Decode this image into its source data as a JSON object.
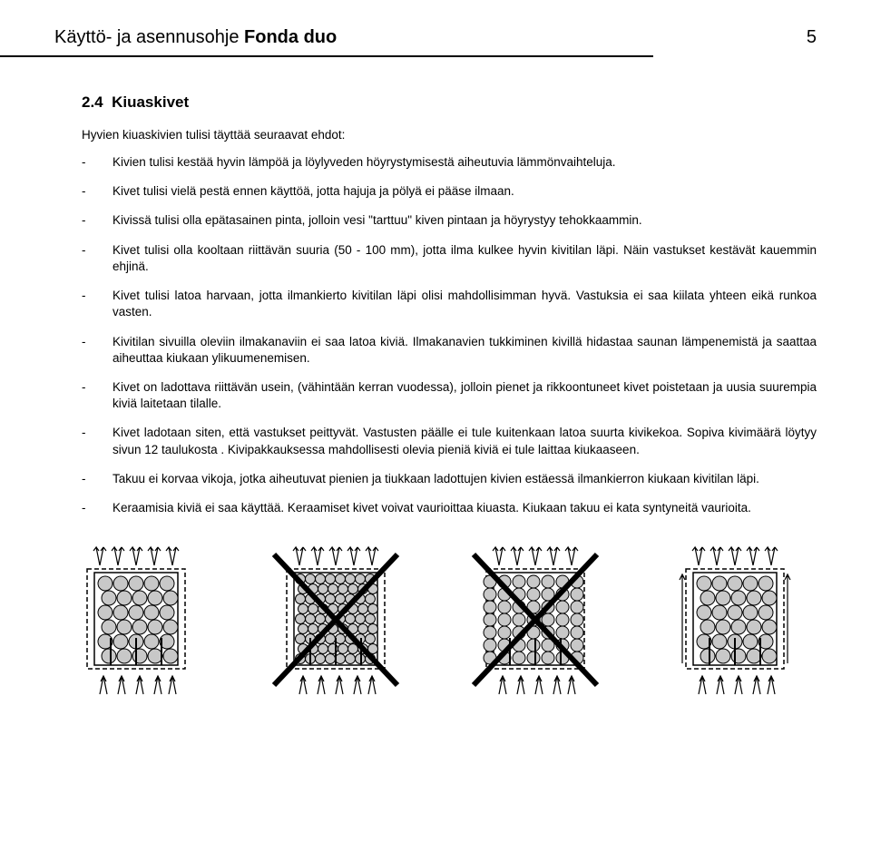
{
  "header": {
    "title_prefix": "Käyttö- ja asennusohje ",
    "title_bold": "Fonda duo",
    "page_number": "5"
  },
  "section": {
    "number": "2.4",
    "title": "Kiuaskivet",
    "intro": "Hyvien kiuaskivien tulisi täyttää seuraavat ehdot:",
    "bullets": [
      "Kivien tulisi kestää hyvin lämpöä ja löylyveden höyrystymisestä aiheutuvia lämmönvaihteluja.",
      "Kivet tulisi vielä pestä ennen käyttöä, jotta hajuja ja pölyä ei pääse ilmaan.",
      "Kivissä tulisi olla epätasainen pinta, jolloin vesi \"tarttuu\" kiven pintaan ja höyrystyy tehokkaammin.",
      "Kivet tulisi olla kooltaan riittävän suuria (50 - 100 mm), jotta ilma kulkee hyvin kivitilan läpi. Näin vastukset kestävät kauemmin ehjinä.",
      "Kivet tulisi latoa harvaan, jotta ilmankierto kivitilan läpi olisi mahdollisimman hyvä. Vastuksia ei saa kiilata yhteen eikä runkoa vasten.",
      "Kivitilan sivuilla oleviin ilmakanaviin ei saa latoa kiviä. Ilmakanavien tukkiminen kivillä hidastaa saunan lämpenemistä ja saattaa aiheuttaa kiukaan ylikuumenemisen.",
      "Kivet on ladottava riittävän usein, (vähintään kerran vuodessa), jolloin pienet ja rikkoontuneet kivet poistetaan ja uusia suurempia kiviä laitetaan tilalle.",
      "Kivet ladotaan siten, että vastukset peittyvät. Vastusten päälle ei tule kuitenkaan latoa suurta kivikekoa. Sopiva kivimäärä löytyy sivun 12 taulukosta . Kivipakkauksessa mahdollisesti olevia pieniä kiviä ei tule laittaa kiukaaseen.",
      "Takuu ei korvaa vikoja, jotka aiheutuvat pienien ja tiukkaan ladottujen kivien estäessä ilmankierron kiukaan kivitilan läpi.",
      "Keraamisia kiviä ei saa käyttää. Keraamiset kivet voivat vaurioittaa kiuasta. Kiukaan takuu ei kata syntyneitä vaurioita."
    ]
  },
  "diagrams": {
    "stroke": "#000000",
    "fill_bg": "#ffffff",
    "stone_fill": "#c8c8c8",
    "items": [
      {
        "crossed": false,
        "stones": "loose"
      },
      {
        "crossed": true,
        "stones": "tight"
      },
      {
        "crossed": true,
        "stones": "channels"
      },
      {
        "crossed": false,
        "stones": "correct"
      }
    ]
  }
}
